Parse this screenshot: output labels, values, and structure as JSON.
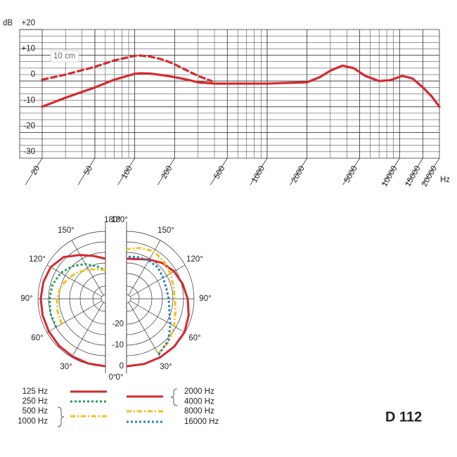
{
  "chart_data": [
    {
      "type": "line",
      "xscale": "log",
      "ylabel": "dB",
      "xlabel": "Hz",
      "annotation": "10 cm",
      "xlim": [
        20,
        20000
      ],
      "ylim": [
        -30,
        20
      ],
      "xticks": [
        20,
        50,
        100,
        200,
        500,
        1000,
        2000,
        5000,
        10000,
        15000,
        20000
      ],
      "yticks": [
        {
          "value": 20,
          "label": "+20"
        },
        {
          "value": 10,
          "label": "+10"
        },
        0,
        -10,
        -20,
        -30
      ],
      "x": [
        20,
        30,
        50,
        70,
        100,
        110,
        130,
        150,
        170,
        200,
        250,
        300,
        380,
        400,
        500,
        1000,
        2000,
        2500,
        3000,
        3700,
        4500,
        5500,
        7000,
        8500,
        10500,
        12500,
        15000,
        17500,
        20000
      ],
      "series": [
        {
          "color": "#d42a2e",
          "dash": "solid",
          "values": [
            -10,
            -6.5,
            -2.5,
            0.5,
            2.8,
            3,
            2.9,
            2.5,
            2.1,
            1.5,
            0.5,
            -0.5,
            -0.9,
            -1,
            -1,
            -1,
            -0.5,
            1.5,
            4,
            6,
            5,
            2,
            0,
            0.3,
            2,
            1,
            -2.5,
            -6,
            -10
          ]
        },
        {
          "color": "#d42a2e",
          "dash": "dashed",
          "values": [
            0.5,
            2.5,
            5.5,
            8,
            9.8,
            9.9,
            9.5,
            8.8,
            8,
            6.5,
            4,
            2,
            0,
            null,
            null,
            null,
            null,
            null,
            null,
            null,
            null,
            null,
            null,
            null,
            null,
            null,
            null,
            null,
            null
          ]
        }
      ]
    },
    {
      "type": "polar",
      "rlim": [
        -32,
        0
      ],
      "rticks": [
        -20,
        -10,
        0
      ],
      "angles": [
        0,
        15,
        30,
        45,
        60,
        75,
        90,
        105,
        120,
        135,
        150,
        165,
        180
      ],
      "angle_ticks": [
        {
          "value": 0,
          "label": "0°"
        },
        {
          "value": 30,
          "label": "30°"
        },
        {
          "value": 60,
          "label": "60°"
        },
        {
          "value": 90,
          "label": "90°"
        },
        {
          "value": 120,
          "label": "120°"
        },
        {
          "value": 150,
          "label": "150°"
        },
        {
          "value": 180,
          "label": "180°"
        }
      ],
      "series": [
        {
          "name": [
            "125 Hz"
          ],
          "side": "left",
          "color": "#d42a2e",
          "dash": "solid",
          "values": [
            0,
            -0.3,
            -0.5,
            -0.7,
            -1,
            -1.2,
            -1.3,
            -1.5,
            -2,
            -4,
            -8,
            -11,
            -13
          ]
        },
        {
          "name": [
            "250 Hz"
          ],
          "side": "left",
          "color": "#22a05a",
          "dash": "dotted",
          "values": [
            null,
            null,
            null,
            null,
            -5,
            -5,
            -5.5,
            -6,
            -7.5,
            -10,
            -13,
            -16,
            -18.5
          ]
        },
        {
          "name": [
            "500 Hz",
            "1000 Hz"
          ],
          "side": "left",
          "color": "#f2c21b",
          "dash": "dashdot",
          "values": [
            null,
            null,
            null,
            null,
            -8,
            -8.5,
            -9,
            -10,
            -12,
            -14,
            -16,
            -17.5,
            -18.5
          ]
        },
        {
          "name": [
            "2000 Hz",
            "4000 Hz"
          ],
          "side": "right",
          "color": "#d42a2e",
          "dash": "solid",
          "values": [
            0,
            0,
            0,
            0,
            -0.3,
            -1.5,
            -3,
            -4.5,
            -6,
            -8,
            -10.5,
            -12.5,
            -13
          ]
        },
        {
          "name": [
            "8000 Hz"
          ],
          "side": "right",
          "color": "#f2c21b",
          "dash": "dashdot",
          "values": [
            null,
            null,
            -2,
            -3.5,
            -6,
            -8,
            -9,
            -9,
            -8,
            -7,
            -6,
            -7,
            -8.5
          ]
        },
        {
          "name": [
            "16000 Hz"
          ],
          "side": "right",
          "color": "#2a7fc1",
          "dash": "dotted",
          "values": [
            null,
            null,
            -1.5,
            -4,
            -8,
            -11,
            -12,
            -12.5,
            -12,
            -11,
            -11,
            -11.5,
            -12
          ]
        }
      ]
    }
  ],
  "model": "D 112"
}
